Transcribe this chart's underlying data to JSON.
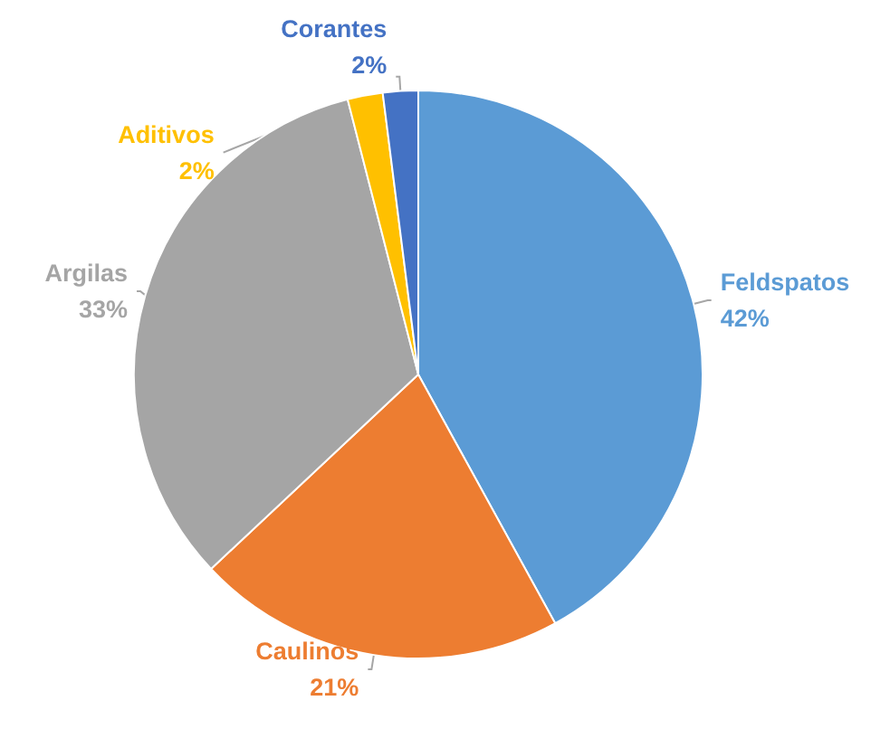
{
  "chart_data": {
    "type": "pie",
    "categories": [
      "Feldspatos",
      "Caulinos",
      "Argilas",
      "Aditivos",
      "Corantes"
    ],
    "values": [
      42,
      21,
      33,
      2,
      2
    ],
    "colors": [
      "#5b9bd5",
      "#ed7d31",
      "#a5a5a5",
      "#ffc000",
      "#4472c4"
    ],
    "value_labels": [
      "42%",
      "21%",
      "33%",
      "2%",
      "2%"
    ],
    "legend": false
  }
}
